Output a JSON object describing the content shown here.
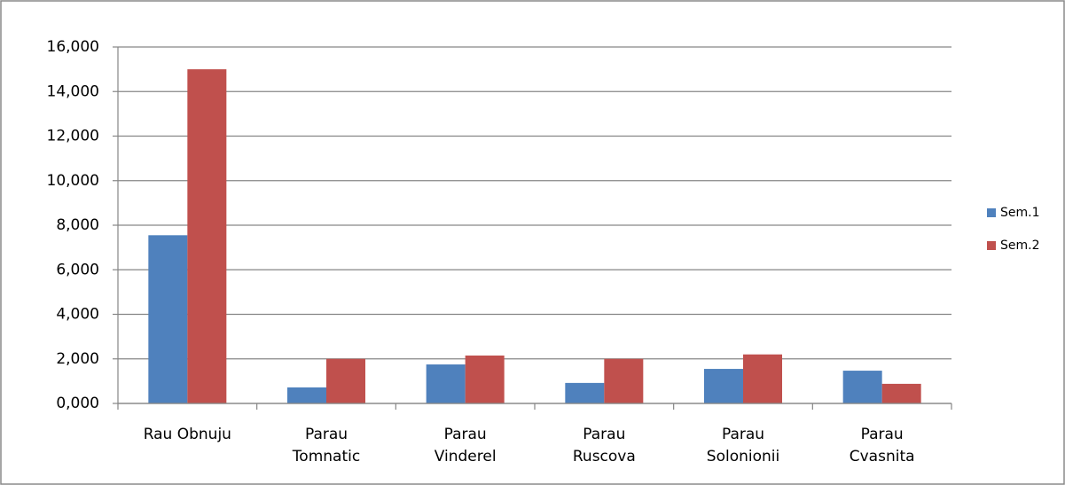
{
  "chart_data": {
    "type": "bar",
    "categories": [
      "Rau Obnuju",
      "Parau\nTomnatic",
      "Parau\nVinderel",
      "Parau\nRuscova",
      "Parau\nSolonionii",
      "Parau\nCvasnita"
    ],
    "series": [
      {
        "name": "Sem.1",
        "color": "#4f81bd",
        "values": [
          7.55,
          0.72,
          1.75,
          0.92,
          1.55,
          1.47
        ]
      },
      {
        "name": "Sem.2",
        "color": "#c0504d",
        "values": [
          15.0,
          2.0,
          2.15,
          2.0,
          2.2,
          0.88
        ]
      }
    ],
    "ylim": [
      0,
      16
    ],
    "yticks": [
      {
        "value": 0,
        "label": "0,000"
      },
      {
        "value": 2,
        "label": "2,000"
      },
      {
        "value": 4,
        "label": "4,000"
      },
      {
        "value": 6,
        "label": "6,000"
      },
      {
        "value": 8,
        "label": "8,000"
      },
      {
        "value": 10,
        "label": "10,000"
      },
      {
        "value": 12,
        "label": "12,000"
      },
      {
        "value": 14,
        "label": "14,000"
      },
      {
        "value": 16,
        "label": "16,000"
      }
    ],
    "grid": true,
    "legend": "right"
  }
}
